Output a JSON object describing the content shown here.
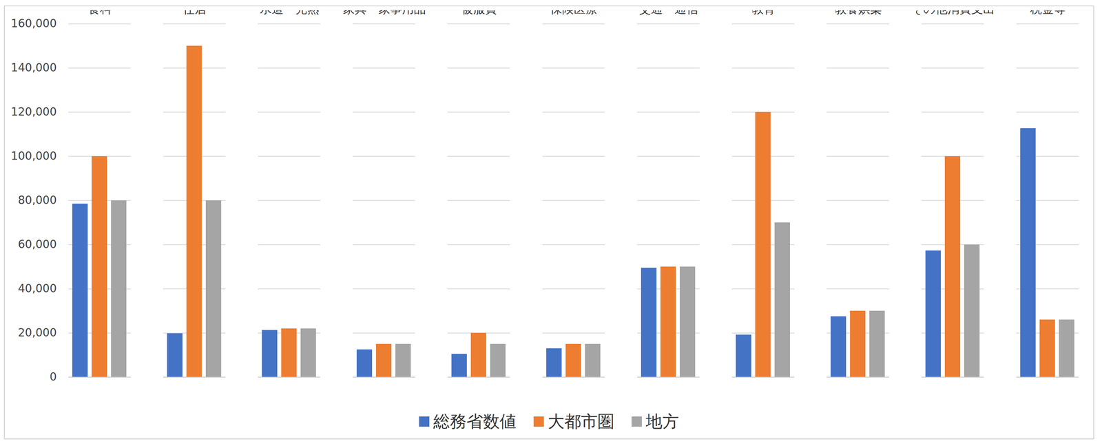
{
  "chart_data": {
    "type": "bar",
    "categories": [
      "食料",
      "住居",
      "水道・光熱",
      "家具・家事用品",
      "被服費",
      "保険医療",
      "交通・通信",
      "教育",
      "教養娯楽",
      "その他消費支出",
      "税金等"
    ],
    "series": [
      {
        "name": "総務省数値",
        "color": "#4472c4",
        "values": [
          78500,
          19800,
          21300,
          12500,
          10500,
          13000,
          49500,
          19200,
          27500,
          57300,
          112700
        ]
      },
      {
        "name": "大都市圏",
        "color": "#ed7d31",
        "values": [
          100000,
          150000,
          22000,
          15000,
          20000,
          15000,
          50000,
          120000,
          30000,
          100000,
          26000
        ]
      },
      {
        "name": "地方",
        "color": "#a5a5a5",
        "values": [
          80000,
          80000,
          22000,
          15000,
          15000,
          15000,
          50000,
          70000,
          30000,
          60000,
          26000
        ]
      }
    ],
    "ylim": [
      0,
      160000
    ],
    "yticks": [
      0,
      {
        "value": 20000,
        "label": "20,000"
      },
      {
        "value": 40000,
        "label": "40,000"
      },
      {
        "value": 60000,
        "label": "60,000"
      },
      {
        "value": 80000,
        "label": "80,000"
      },
      {
        "value": 100000,
        "label": "100,000"
      },
      {
        "value": 120000,
        "label": "120,000"
      },
      {
        "value": 140000,
        "label": "140,000"
      },
      {
        "value": 160000,
        "label": "160,000"
      }
    ],
    "grid": true,
    "legend": "bottom"
  }
}
